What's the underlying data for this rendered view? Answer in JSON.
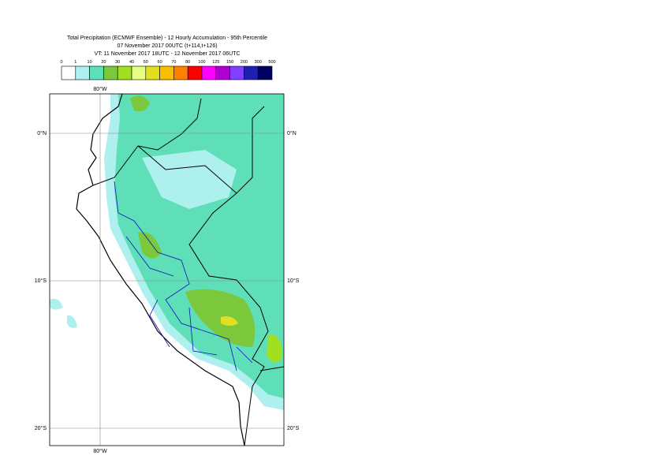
{
  "header": {
    "lines": [
      "Total Precipitation (ECMWF Ensemble) - 12 Hourly Accumulation - 95th Percentile",
      "07 November 2017 00UTC (t+114,t+126)",
      "VT: 11 November 2017 18UTC - 12 November 2017 06UTC"
    ]
  },
  "legend": {
    "labels": [
      "0",
      "1",
      "10",
      "20",
      "30",
      "40",
      "50",
      "60",
      "70",
      "80",
      "100",
      "125",
      "150",
      "200",
      "300",
      "500"
    ],
    "colors": [
      "#ffffff",
      "#aef0ee",
      "#5fdfb8",
      "#7cc83c",
      "#a0e020",
      "#e6ff80",
      "#e0e020",
      "#f8c000",
      "#ff8000",
      "#ff0000",
      "#ff00ff",
      "#b000d0",
      "#8040ff",
      "#2020b0",
      "#000060"
    ]
  },
  "map": {
    "lon_labels": [
      "80°W"
    ],
    "lat_labels": [
      "0°N",
      "10°S",
      "20°S"
    ]
  }
}
